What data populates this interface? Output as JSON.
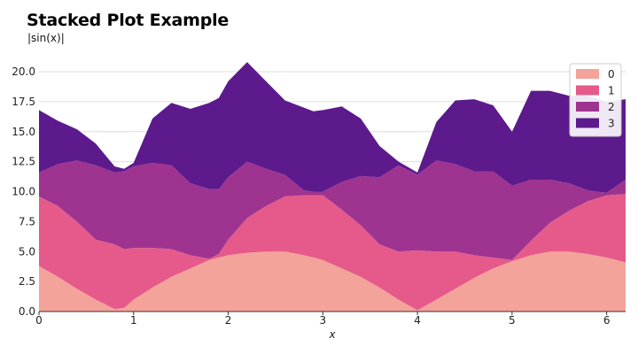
{
  "chart_data": {
    "type": "area",
    "stacked": true,
    "title": "Stacked Plot Example",
    "subtitle": "|sin(x)|",
    "xlabel": "x",
    "ylabel": "",
    "xlim": [
      0,
      6.2
    ],
    "ylim": [
      0,
      20
    ],
    "xticks": [
      0,
      1,
      2,
      3,
      4,
      5,
      6
    ],
    "yticks": [
      "0.0",
      "2.5",
      "5.0",
      "7.5",
      "10.0",
      "12.5",
      "15.0",
      "17.5",
      "20.0"
    ],
    "grid": "horizontal",
    "legend_position": "top-right",
    "x": [
      0,
      0.2,
      0.4,
      0.6,
      0.8,
      0.9,
      1.0,
      1.2,
      1.4,
      1.6,
      1.8,
      1.9,
      2.0,
      2.2,
      2.4,
      2.6,
      2.8,
      2.9,
      3.0,
      3.2,
      3.4,
      3.6,
      3.8,
      4.0,
      4.2,
      4.4,
      4.6,
      4.8,
      5.0,
      5.2,
      5.4,
      5.6,
      5.8,
      6.0,
      6.2
    ],
    "series": [
      {
        "name": "0",
        "color": "#f4a39a",
        "values": [
          3.8,
          2.9,
          1.9,
          1.0,
          0.2,
          0.3,
          1.0,
          2.0,
          2.9,
          3.6,
          4.3,
          4.5,
          4.7,
          4.9,
          5.0,
          5.0,
          4.7,
          4.5,
          4.3,
          3.6,
          2.9,
          2.0,
          1.0,
          0.1,
          1.0,
          1.9,
          2.8,
          3.6,
          4.2,
          4.7,
          5.0,
          5.0,
          4.8,
          4.5,
          4.1
        ]
      },
      {
        "name": "1",
        "color": "#e55a8b",
        "values": [
          5.8,
          5.9,
          5.6,
          5.0,
          5.4,
          4.9,
          4.3,
          3.3,
          2.3,
          1.1,
          0.1,
          0.3,
          1.3,
          2.9,
          3.8,
          4.6,
          5.0,
          5.2,
          5.4,
          4.9,
          4.3,
          3.6,
          4.0,
          5.0,
          4.0,
          3.1,
          1.9,
          0.9,
          0.1,
          1.2,
          2.4,
          3.4,
          4.4,
          5.2,
          5.7
        ]
      },
      {
        "name": "2",
        "color": "#9e3490",
        "values": [
          2.0,
          3.5,
          5.1,
          6.2,
          6.0,
          6.5,
          6.8,
          7.1,
          7.0,
          6.0,
          5.8,
          5.4,
          5.2,
          4.7,
          3.1,
          1.8,
          0.4,
          0.3,
          0.3,
          2.3,
          4.1,
          5.6,
          7.2,
          6.3,
          7.6,
          7.3,
          7.0,
          7.2,
          6.2,
          5.1,
          3.6,
          2.3,
          0.9,
          0.2,
          1.2
        ]
      },
      {
        "name": "3",
        "color": "#5c1a8c",
        "values": [
          5.2,
          3.6,
          2.6,
          1.8,
          0.5,
          0.2,
          0.3,
          3.7,
          5.2,
          6.2,
          7.2,
          7.6,
          8.0,
          8.3,
          7.3,
          6.2,
          6.9,
          6.7,
          6.8,
          6.3,
          4.8,
          2.6,
          0.3,
          0.2,
          3.2,
          5.3,
          6.0,
          5.5,
          4.5,
          7.4,
          7.4,
          7.3,
          7.9,
          7.6,
          6.7
        ]
      }
    ]
  }
}
